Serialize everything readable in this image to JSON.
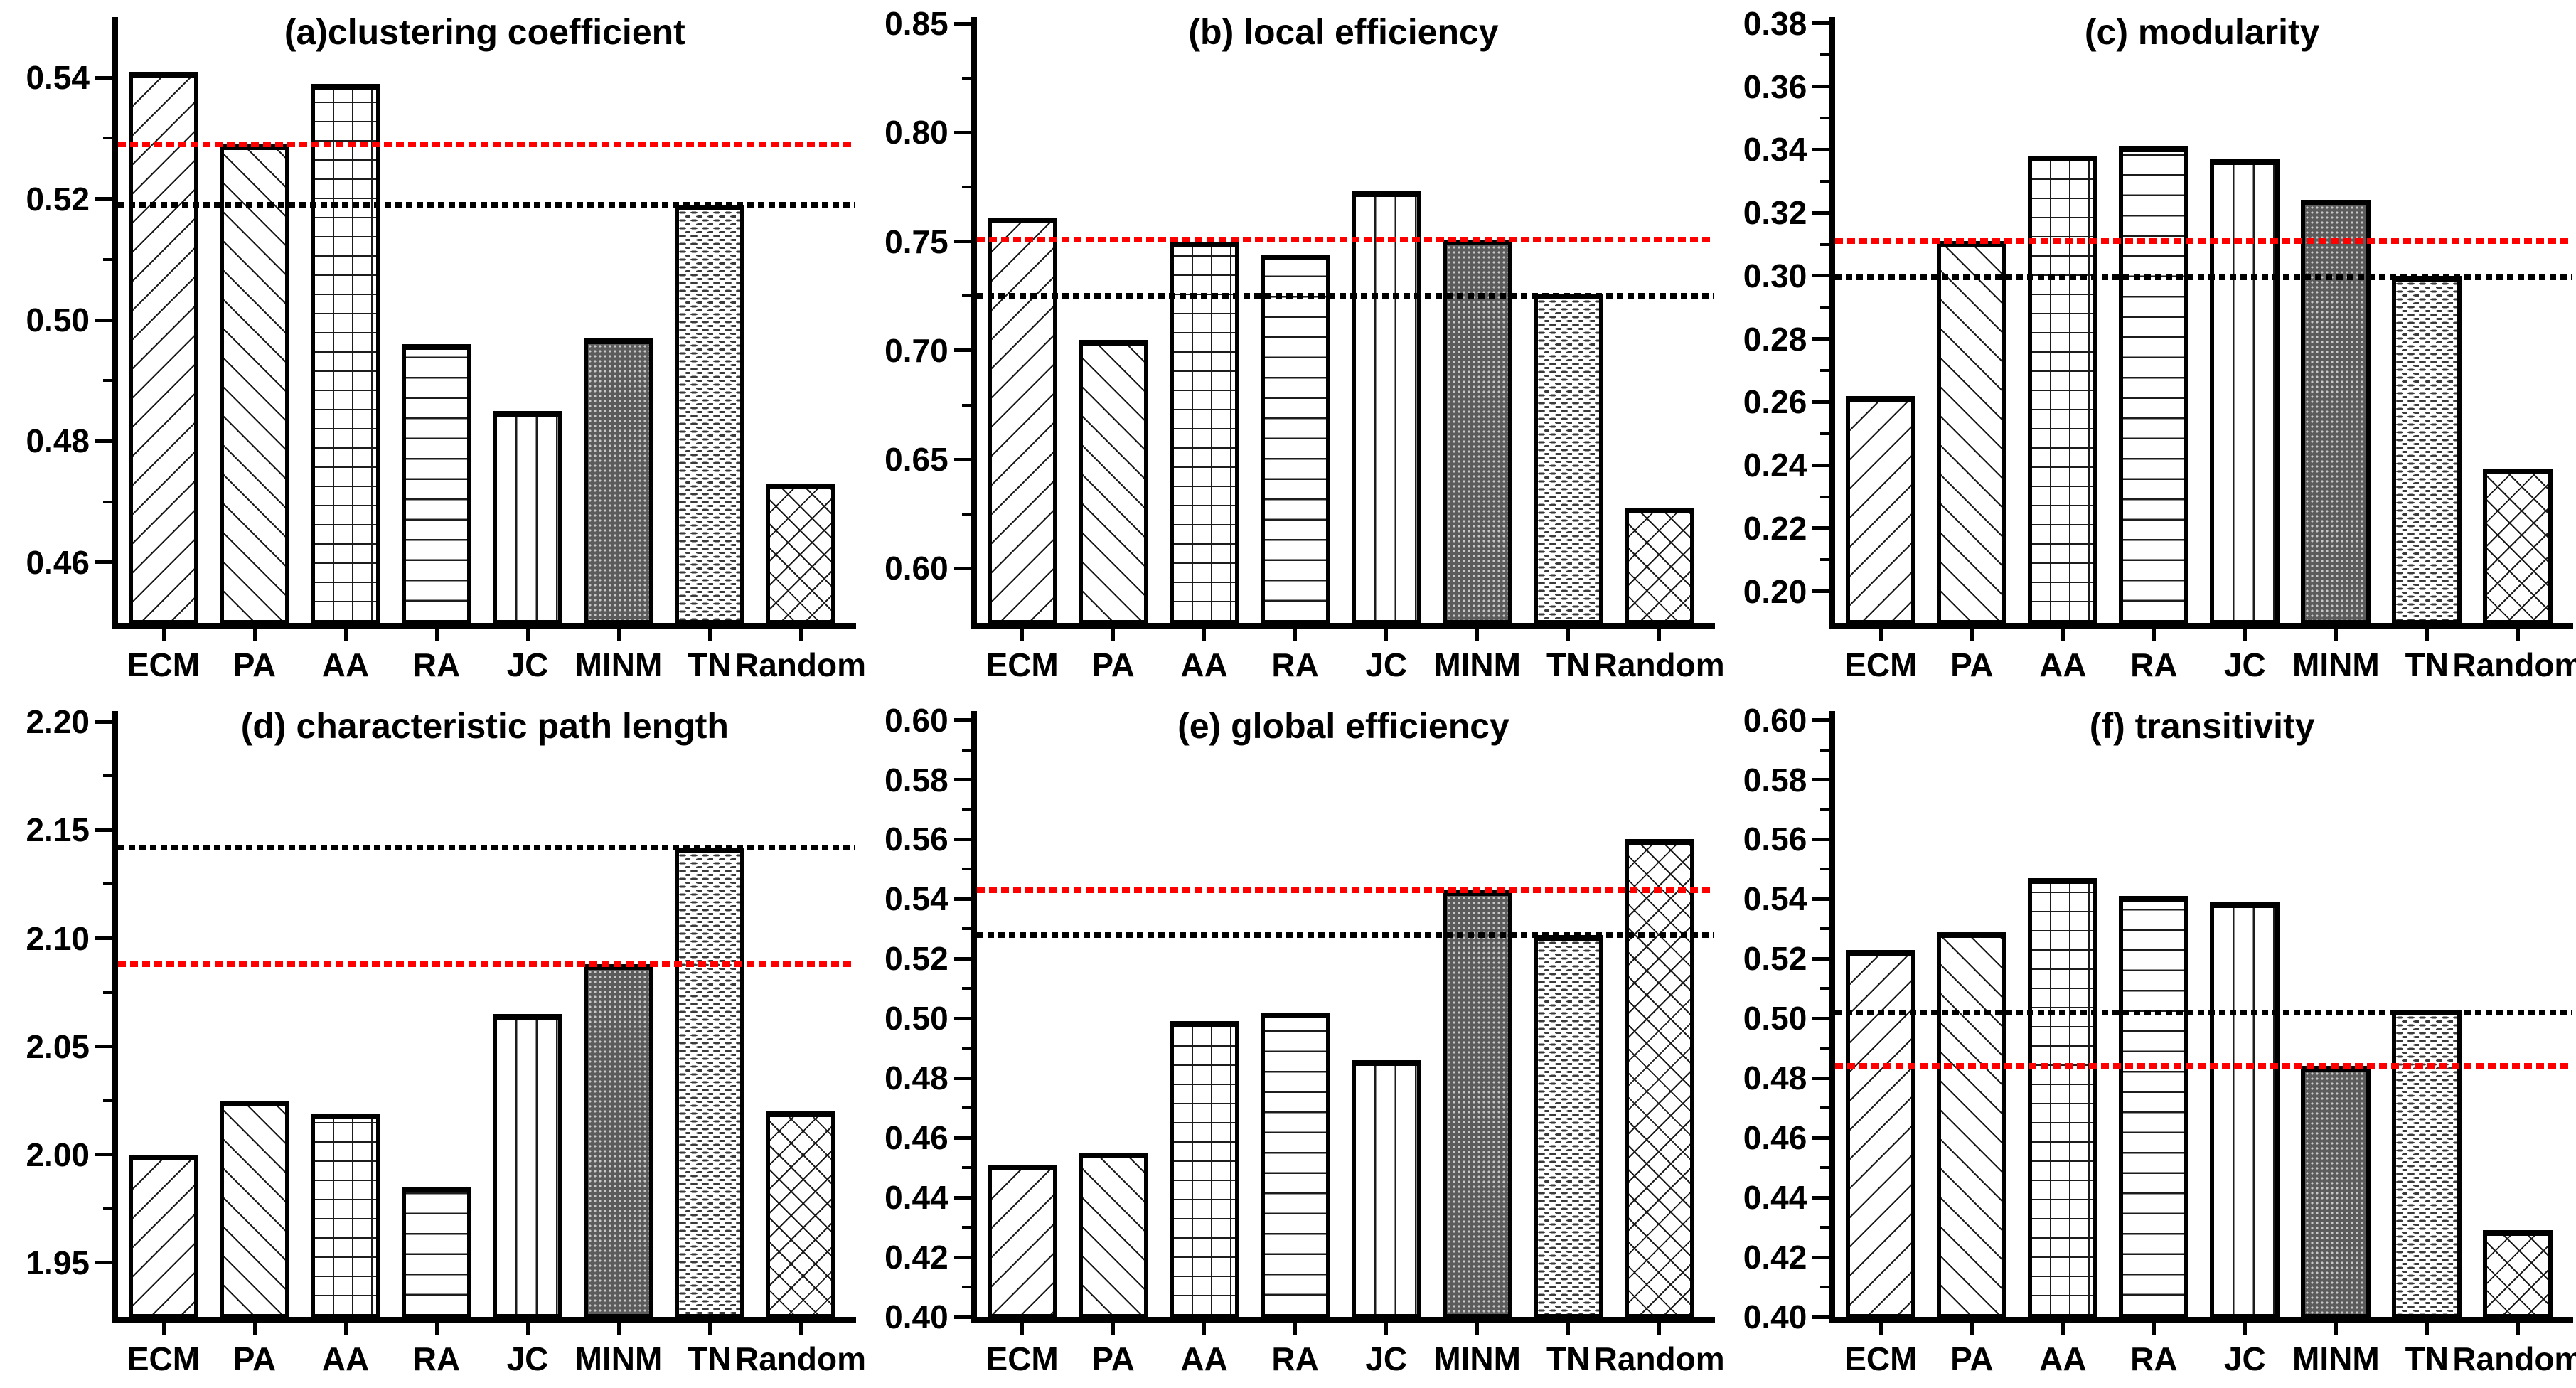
{
  "figure": {
    "background": "#ffffff",
    "categories": [
      "ECM",
      "PA",
      "AA",
      "RA",
      "JC",
      "MINM",
      "TN",
      "Random"
    ],
    "patterns": {
      "ECM": "diag-up",
      "PA": "diag-down",
      "AA": "grid",
      "RA": "horizontal",
      "JC": "vertical",
      "MINM": "dark-dots",
      "TN": "light-dashes",
      "Random": "cross-diag"
    },
    "colors": {
      "red_reference_line": "#ff0000",
      "black_reference_line": "#000000",
      "bar_fill": "#ffffff",
      "bar_stroke": "#000000",
      "minm_fill": "#5c5c5c"
    }
  },
  "chart_data": [
    {
      "id": "a",
      "type": "bar",
      "title": "(a)clustering coefficient",
      "categories": [
        "ECM",
        "PA",
        "AA",
        "RA",
        "JC",
        "MINM",
        "TN",
        "Random"
      ],
      "values": [
        0.541,
        0.529,
        0.539,
        0.496,
        0.485,
        0.497,
        0.519,
        0.473
      ],
      "ylim": [
        0.45,
        0.55
      ],
      "yticks": [
        0.54,
        0.52,
        0.5,
        0.48,
        0.46
      ],
      "yminor_step": 0.01,
      "grid": false,
      "legend": "none",
      "ref_lines": {
        "red": 0.529,
        "black": 0.519
      }
    },
    {
      "id": "b",
      "type": "bar",
      "title": "(b) local efficiency",
      "categories": [
        "ECM",
        "PA",
        "AA",
        "RA",
        "JC",
        "MINM",
        "TN",
        "Random"
      ],
      "values": [
        0.761,
        0.705,
        0.75,
        0.744,
        0.773,
        0.751,
        0.726,
        0.628
      ],
      "ylim": [
        0.575,
        0.853
      ],
      "yticks": [
        0.85,
        0.8,
        0.75,
        0.7,
        0.65,
        0.6
      ],
      "yminor_step": 0.025,
      "grid": false,
      "legend": "none",
      "ref_lines": {
        "red": 0.751,
        "black": 0.725
      }
    },
    {
      "id": "c",
      "type": "bar",
      "title": "(c) modularity",
      "categories": [
        "ECM",
        "PA",
        "AA",
        "RA",
        "JC",
        "MINM",
        "TN",
        "Random"
      ],
      "values": [
        0.262,
        0.311,
        0.338,
        0.341,
        0.337,
        0.324,
        0.3,
        0.239
      ],
      "ylim": [
        0.19,
        0.382
      ],
      "yticks": [
        0.38,
        0.36,
        0.34,
        0.32,
        0.3,
        0.28,
        0.26,
        0.24,
        0.22,
        0.2
      ],
      "yminor_step": 0.01,
      "grid": false,
      "legend": "none",
      "ref_lines": {
        "red": 0.311,
        "black": 0.2995
      }
    },
    {
      "id": "d",
      "type": "bar",
      "title": "(d) characteristic path length",
      "categories": [
        "ECM",
        "PA",
        "AA",
        "RA",
        "JC",
        "MINM",
        "TN",
        "Random"
      ],
      "values": [
        2.0,
        2.025,
        2.019,
        1.985,
        2.065,
        2.088,
        2.142,
        2.02
      ],
      "ylim": [
        1.925,
        2.205
      ],
      "yticks": [
        2.2,
        2.15,
        2.1,
        2.05,
        2.0,
        1.95
      ],
      "yminor_step": 0.025,
      "grid": false,
      "legend": "none",
      "ref_lines": {
        "red": 2.088,
        "black": 2.142
      }
    },
    {
      "id": "e",
      "type": "bar",
      "title": "(e) global efficiency",
      "categories": [
        "ECM",
        "PA",
        "AA",
        "RA",
        "JC",
        "MINM",
        "TN",
        "Random"
      ],
      "values": [
        0.451,
        0.455,
        0.499,
        0.502,
        0.486,
        0.543,
        0.528,
        0.56
      ],
      "ylim": [
        0.4,
        0.603
      ],
      "yticks": [
        0.6,
        0.58,
        0.56,
        0.54,
        0.52,
        0.5,
        0.48,
        0.46,
        0.44,
        0.42,
        0.4
      ],
      "yminor_step": 0.01,
      "grid": false,
      "legend": "none",
      "ref_lines": {
        "red": 0.543,
        "black": 0.528
      }
    },
    {
      "id": "f",
      "type": "bar",
      "title": "(f) transitivity",
      "categories": [
        "ECM",
        "PA",
        "AA",
        "RA",
        "JC",
        "MINM",
        "TN",
        "Random"
      ],
      "values": [
        0.523,
        0.529,
        0.547,
        0.541,
        0.539,
        0.484,
        0.503,
        0.429
      ],
      "ylim": [
        0.4,
        0.603
      ],
      "yticks": [
        0.6,
        0.58,
        0.56,
        0.54,
        0.52,
        0.5,
        0.48,
        0.46,
        0.44,
        0.42,
        0.4
      ],
      "yminor_step": 0.01,
      "grid": false,
      "legend": "none",
      "ref_lines": {
        "red": 0.484,
        "black": 0.502
      }
    }
  ]
}
